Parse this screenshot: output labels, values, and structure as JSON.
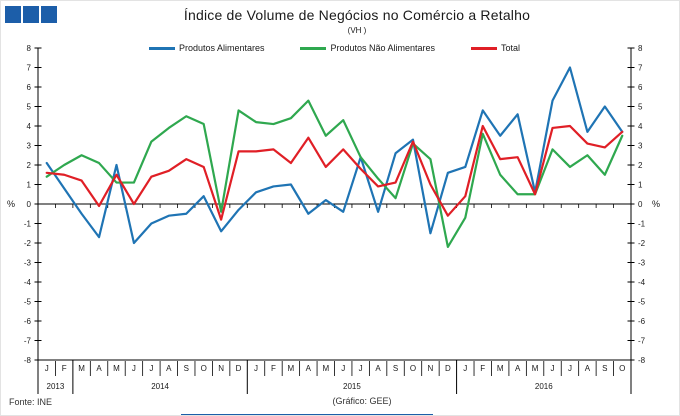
{
  "logo": {
    "square_count": 3,
    "color": "#1c5ea9"
  },
  "header": {
    "title": "Índice de Volume de Negócios no Comércio a Retalho",
    "subtitle": "(VH )"
  },
  "footer": {
    "source": "Fonte: INE",
    "credit": "(Gráfico: GEE)",
    "rule_color": "#1c5ea9"
  },
  "chart_data": {
    "type": "line",
    "title": "Índice de Volume de Negócios no Comércio a Retalho",
    "subtitle": "(VH )",
    "grid": false,
    "legend_position": "top",
    "y_axis": {
      "unit_left": "%",
      "unit_right": "%",
      "min": -8,
      "max": 8,
      "step": 1,
      "tick_labels": [
        "8",
        "7",
        "6",
        "5",
        "4",
        "3",
        "2",
        "1",
        "0",
        "-1",
        "-2",
        "-3",
        "-4",
        "-5",
        "-6",
        "-7",
        "-8"
      ]
    },
    "x_axis": {
      "year_groups": [
        {
          "year": "2013",
          "months": [
            "J",
            "F"
          ]
        },
        {
          "year": "2014",
          "months": [
            "M",
            "A",
            "M",
            "J",
            "J",
            "A",
            "S",
            "O",
            "N",
            "D"
          ]
        },
        {
          "year": "2015",
          "months": [
            "J",
            "F",
            "M",
            "A",
            "M",
            "J",
            "J",
            "A",
            "S",
            "O",
            "N",
            "D"
          ]
        },
        {
          "year": "2016",
          "months": [
            "J",
            "F",
            "M",
            "A",
            "M",
            "J",
            "J",
            "A",
            "S",
            "O"
          ]
        }
      ]
    },
    "series": [
      {
        "name": "Produtos Alimentares",
        "color": "#1f74b4",
        "values": [
          2.1,
          0.8,
          -0.5,
          -1.7,
          2.0,
          -2.0,
          -1.0,
          -0.6,
          -0.5,
          0.4,
          -1.4,
          -0.3,
          0.6,
          0.9,
          1.0,
          -0.5,
          0.2,
          -0.4,
          2.4,
          -0.4,
          2.6,
          3.3,
          -1.5,
          1.6,
          1.9,
          4.8,
          3.5,
          4.6,
          0.6,
          5.3,
          7.0,
          3.7,
          5.0,
          3.7
        ]
      },
      {
        "name": "Produtos Não Alimentares",
        "color": "#2fa84f",
        "values": [
          1.4,
          2.0,
          2.5,
          2.1,
          1.1,
          1.1,
          3.2,
          3.9,
          4.5,
          4.1,
          -0.4,
          4.8,
          4.2,
          4.1,
          4.4,
          5.3,
          3.5,
          4.3,
          2.4,
          1.3,
          0.3,
          3.1,
          2.3,
          -2.2,
          -0.7,
          3.6,
          1.5,
          0.5,
          0.5,
          2.8,
          1.9,
          2.5,
          1.5,
          3.5
        ]
      },
      {
        "name": "Total",
        "color": "#e01f26",
        "values": [
          1.6,
          1.5,
          1.2,
          -0.1,
          1.5,
          0.0,
          1.4,
          1.7,
          2.3,
          1.9,
          -0.8,
          2.7,
          2.7,
          2.8,
          2.1,
          3.4,
          1.9,
          2.8,
          1.8,
          0.9,
          1.1,
          3.2,
          1.0,
          -0.6,
          0.4,
          4.0,
          2.3,
          2.4,
          0.5,
          3.9,
          4.0,
          3.1,
          2.9,
          3.7
        ]
      }
    ]
  }
}
